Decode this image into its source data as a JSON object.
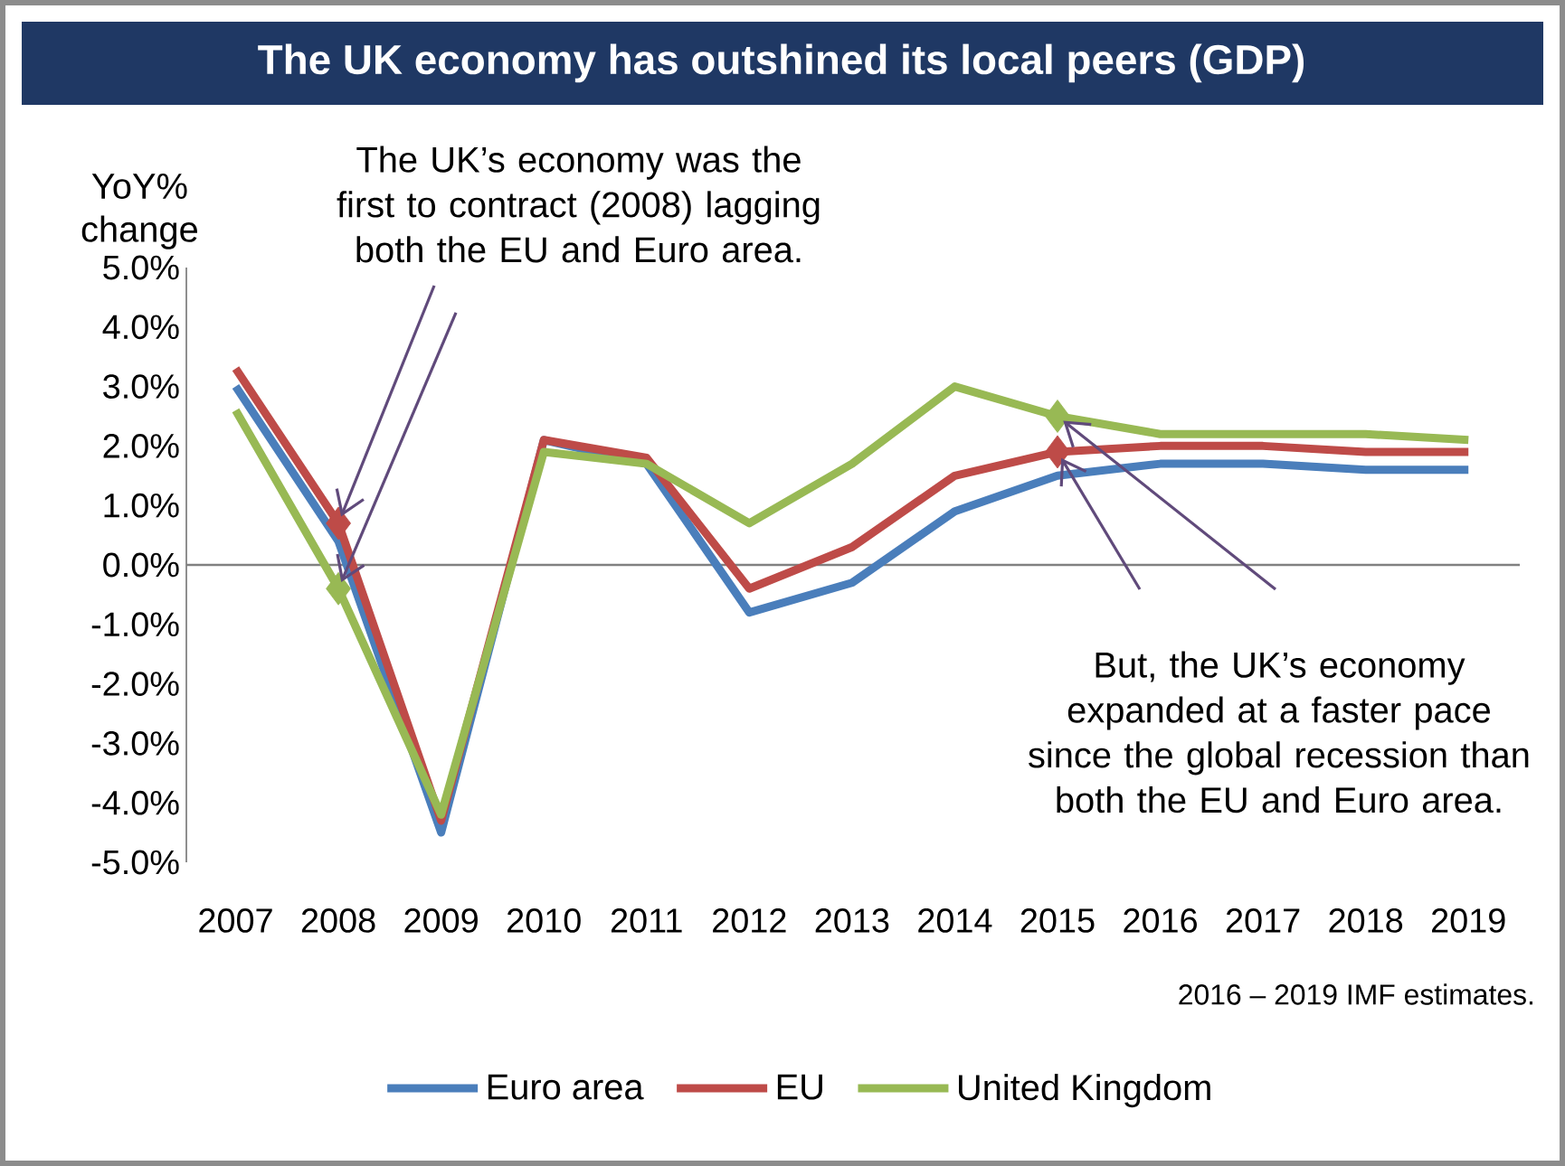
{
  "chart_data": {
    "type": "line",
    "title": "The UK economy has outshined its local peers (GDP)",
    "ylabel": "YoY% change",
    "categories": [
      "2007",
      "2008",
      "2009",
      "2010",
      "2011",
      "2012",
      "2013",
      "2014",
      "2015",
      "2016",
      "2017",
      "2018",
      "2019"
    ],
    "series": [
      {
        "name": "Euro area",
        "color": "#4a7ebb",
        "values": [
          3.0,
          0.4,
          -4.5,
          2.1,
          1.7,
          -0.8,
          -0.3,
          0.9,
          1.5,
          1.7,
          1.7,
          1.6,
          1.6
        ]
      },
      {
        "name": "EU",
        "color": "#be4b48",
        "values": [
          3.3,
          0.7,
          -4.3,
          2.1,
          1.8,
          -0.4,
          0.3,
          1.5,
          1.9,
          2.0,
          2.0,
          1.9,
          1.9
        ]
      },
      {
        "name": "United Kingdom",
        "color": "#98b954",
        "values": [
          2.6,
          -0.4,
          -4.2,
          1.9,
          1.7,
          0.7,
          1.7,
          3.0,
          2.5,
          2.2,
          2.2,
          2.2,
          2.1
        ]
      },
      {
        "type": "scatter",
        "color": "#be4b48",
        "marker": "diamond",
        "values": [
          null,
          0.7,
          null,
          null,
          null,
          null,
          null,
          null,
          1.9,
          null,
          null,
          null,
          null
        ]
      },
      {
        "type": "scatter",
        "color": "#98b954",
        "marker": "diamond",
        "values": [
          null,
          -0.4,
          null,
          null,
          null,
          null,
          null,
          null,
          2.5,
          null,
          null,
          null,
          null
        ]
      }
    ],
    "ylim": [
      -5,
      5
    ],
    "yticks": [
      {
        "value": -5,
        "label": "-5.0%"
      },
      {
        "value": -4,
        "label": "-4.0%"
      },
      {
        "value": -3,
        "label": "-3.0%"
      },
      {
        "value": -2,
        "label": "-2.0%"
      },
      {
        "value": -1,
        "label": "-1.0%"
      },
      {
        "value": 0,
        "label": "0.0%"
      },
      {
        "value": 1,
        "label": "1.0%"
      },
      {
        "value": 2,
        "label": "2.0%"
      },
      {
        "value": 3,
        "label": "3.0%"
      },
      {
        "value": 4,
        "label": "4.0%"
      },
      {
        "value": 5,
        "label": "5.0%"
      }
    ],
    "grid": false,
    "ref_lines": [
      {
        "axis": "y",
        "value": 0,
        "color": "#808080"
      }
    ],
    "legend": "bottom",
    "annotations": [
      {
        "text": "The UK’s economy was the first to contract (2008) lagging both the EU and Euro area.",
        "x": "2008",
        "y": 0.7
      },
      "But, the UK’s economy expanded at a faster pace since the global recession than both the EU and Euro area.",
      "2016 – 2019 IMF estimates."
    ]
  }
}
